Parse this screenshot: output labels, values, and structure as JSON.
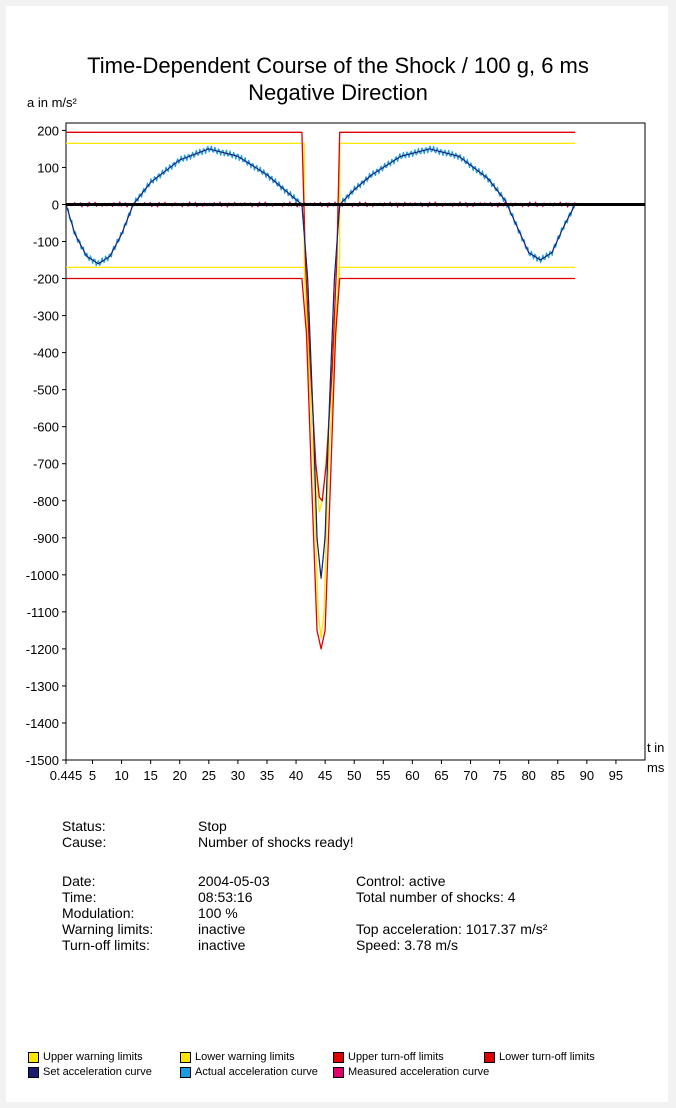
{
  "chart_data": {
    "type": "line",
    "title": "Time-Dependent Course of the Shock / 100 g, 6 ms",
    "subtitle": "Negative Direction",
    "ylabel": "a in m/s²",
    "xlabel_line1": "t in",
    "xlabel_line2": "ms",
    "xlim": [
      0.445,
      100
    ],
    "ylim": [
      -1500,
      220
    ],
    "x_tick_labels": [
      "0.445",
      "5",
      "10",
      "15",
      "20",
      "25",
      "30",
      "35",
      "40",
      "45",
      "50",
      "55",
      "60",
      "65",
      "70",
      "75",
      "80",
      "85",
      "90",
      "95"
    ],
    "x_tick_values": [
      0.445,
      5,
      10,
      15,
      20,
      25,
      30,
      35,
      40,
      45,
      50,
      55,
      60,
      65,
      70,
      75,
      80,
      85,
      90,
      95
    ],
    "y_tick_labels": [
      "200",
      "100",
      "0",
      "-100",
      "-200",
      "-300",
      "-400",
      "-500",
      "-600",
      "-700",
      "-800",
      "-900",
      "-1000",
      "-1100",
      "-1200",
      "-1300",
      "-1400",
      "-1500"
    ],
    "y_tick_values": [
      200,
      100,
      0,
      -100,
      -200,
      -300,
      -400,
      -500,
      -600,
      -700,
      -800,
      -900,
      -1000,
      -1100,
      -1200,
      -1300,
      -1400,
      -1500
    ],
    "series": [
      {
        "name": "Upper warning limits",
        "color": "#ffe600",
        "x": [
          0.445,
          41.4,
          41.4,
          43.5,
          44.0,
          44.5,
          45.0,
          47.5,
          47.5,
          88.0
        ],
        "y": [
          165,
          165,
          -150,
          -730,
          -830,
          -800,
          -730,
          -150,
          165,
          165
        ]
      },
      {
        "name": "Lower warning limits",
        "color": "#ffe600",
        "x": [
          0.445,
          41.4,
          43.0,
          43.8,
          44.3,
          44.8,
          45.6,
          47.5,
          88.0
        ],
        "y": [
          -170,
          -170,
          -700,
          -1100,
          -1170,
          -1100,
          -700,
          -170,
          -170
        ]
      },
      {
        "name": "Upper turn-off limits",
        "color": "#e00000",
        "x": [
          0.445,
          41.0,
          41.6,
          42.5,
          43.4,
          44.0,
          44.5,
          45.2,
          46.2,
          47.0,
          47.5,
          88.0
        ],
        "y": [
          195,
          195,
          -150,
          -450,
          -700,
          -790,
          -800,
          -700,
          -450,
          -150,
          195,
          195
        ]
      },
      {
        "name": "Lower turn-off limits",
        "color": "#e00000",
        "x": [
          0.445,
          41.0,
          41.8,
          42.8,
          43.6,
          44.3,
          45.0,
          45.8,
          46.8,
          47.5,
          88.0
        ],
        "y": [
          -200,
          -200,
          -350,
          -800,
          -1150,
          -1200,
          -1150,
          -800,
          -350,
          -200,
          -200
        ]
      },
      {
        "name": "Set acceleration curve",
        "color": "#1a1a6e",
        "x": [
          0.445,
          2,
          4,
          6,
          8,
          10,
          12,
          15,
          20,
          25,
          30,
          35,
          38,
          41,
          42,
          43,
          43.6,
          44.3,
          45,
          45.6,
          46.6,
          47.5,
          50,
          53,
          58,
          63,
          68,
          73,
          76,
          78,
          80,
          82,
          84,
          86,
          88
        ],
        "y": [
          0,
          -80,
          -140,
          -160,
          -140,
          -80,
          0,
          60,
          120,
          150,
          130,
          80,
          40,
          0,
          -200,
          -600,
          -900,
          -1010,
          -900,
          -600,
          -200,
          0,
          40,
          80,
          130,
          150,
          130,
          70,
          10,
          -60,
          -130,
          -150,
          -130,
          -60,
          0
        ]
      },
      {
        "name": "Actual acceleration curve",
        "color": "#1b9be0"
      },
      {
        "name": "Measured acceleration curve",
        "color": "#e0006e"
      }
    ]
  },
  "legend": [
    {
      "label": "Upper warning limits",
      "color": "#ffe600"
    },
    {
      "label": "Lower warning limits",
      "color": "#ffe600"
    },
    {
      "label": "Upper turn-off limits",
      "color": "#e00000"
    },
    {
      "label": "Lower turn-off limits",
      "color": "#e00000"
    },
    {
      "label": "Set acceleration curve",
      "color": "#1a1a6e"
    },
    {
      "label": "Actual acceleration curve",
      "color": "#1b9be0"
    },
    {
      "label": "Measured acceleration curve",
      "color": "#e0006e"
    }
  ],
  "info": {
    "status_label": "Status:",
    "status_value": "Stop",
    "cause_label": "Cause:",
    "cause_value": "Number of shocks ready!",
    "date_label": "Date:",
    "date_value": "2004-05-03",
    "time_label": "Time:",
    "time_value": "08:53:16",
    "modulation_label": "Modulation:",
    "modulation_value": "100 %",
    "warning_label": "Warning limits:",
    "warning_value": "inactive",
    "turnoff_label": "Turn-off limits:",
    "turnoff_value": "inactive",
    "control": "Control: active",
    "total_shocks": "Total number of shocks: 4",
    "top_accel": "Top acceleration: 1017.37 m/s²",
    "speed": "Speed: 3.78 m/s"
  }
}
